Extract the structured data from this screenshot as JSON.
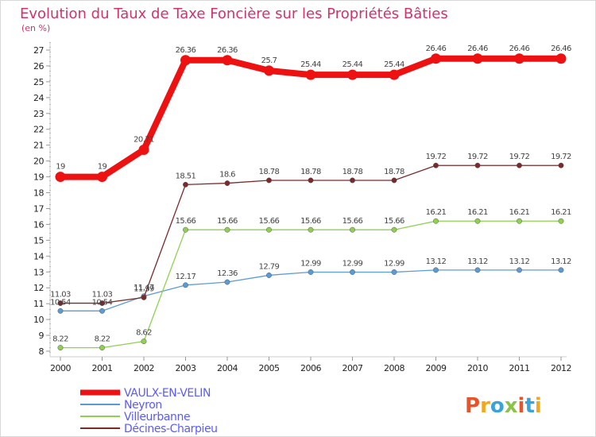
{
  "header": {
    "title": "Evolution du Taux de Taxe Foncière sur les Propriétés Bâties",
    "subtitle": "(en %)"
  },
  "logo": {
    "text": "Proxiti",
    "colors": [
      "#e8542a",
      "#f2a81d",
      "#3aa3d9",
      "#8bc34a",
      "#e8542a",
      "#3aa3d9",
      "#f2a81d"
    ]
  },
  "chart_data": {
    "type": "line",
    "title": "Evolution du Taux de Taxe Foncière sur les Propriétés Bâties",
    "ylabel": "(en %)",
    "xlabel": "",
    "x": [
      "2000",
      "2001",
      "2002",
      "2003",
      "2004",
      "2005",
      "2006",
      "2007",
      "2008",
      "2009",
      "2010",
      "2011",
      "2012"
    ],
    "ylim": [
      8,
      27
    ],
    "yticks": [
      8,
      9,
      10,
      11,
      12,
      13,
      14,
      15,
      16,
      17,
      18,
      19,
      20,
      21,
      22,
      23,
      24,
      25,
      26,
      27
    ],
    "grid": false,
    "legend": "bottom-left",
    "series": [
      {
        "name": "VAULX-EN-VELIN",
        "color": "#ee1111",
        "values": [
          19,
          19,
          20.71,
          26.36,
          26.36,
          25.7,
          25.44,
          25.44,
          25.44,
          26.46,
          26.46,
          26.46,
          26.46
        ],
        "labels": [
          "19",
          "19",
          "20.71",
          "26.36",
          "26.36",
          "25.7",
          "25.44",
          "25.44",
          "25.44",
          "26.46",
          "26.46",
          "26.46",
          "26.46"
        ]
      },
      {
        "name": "Neyron",
        "color": "#5b9bd5",
        "values": [
          10.54,
          10.54,
          11.47,
          12.17,
          12.36,
          12.79,
          12.99,
          12.99,
          12.99,
          13.12,
          13.12,
          13.12,
          13.12
        ],
        "labels": [
          "10.54",
          "10.54",
          "11.47",
          "12.17",
          "12.36",
          "12.79",
          "12.99",
          "12.99",
          "12.99",
          "13.12",
          "13.12",
          "13.12",
          "13.12"
        ]
      },
      {
        "name": "Villeurbanne",
        "color": "#8fd14f",
        "values": [
          8.22,
          8.22,
          8.62,
          15.66,
          15.66,
          15.66,
          15.66,
          15.66,
          15.66,
          16.21,
          16.21,
          16.21,
          16.21
        ],
        "labels": [
          "8.22",
          "8.22",
          "8.62",
          "15.66",
          "15.66",
          "15.66",
          "15.66",
          "15.66",
          "15.66",
          "16.21",
          "16.21",
          "16.21",
          "16.21"
        ]
      },
      {
        "name": "Décines-Charpieu",
        "color": "#7a2a2a",
        "values": [
          11.03,
          11.03,
          11.39,
          18.51,
          18.6,
          18.78,
          18.78,
          18.78,
          18.78,
          19.72,
          19.72,
          19.72,
          19.72
        ],
        "labels": [
          "11.03",
          "11.03",
          "11.39",
          "18.51",
          "18.6",
          "18.78",
          "18.78",
          "18.78",
          "18.78",
          "19.72",
          "19.72",
          "19.72",
          "19.72"
        ]
      }
    ]
  }
}
